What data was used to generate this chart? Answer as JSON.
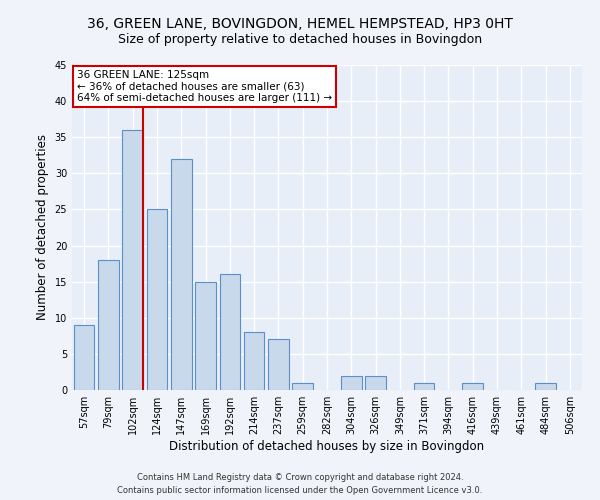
{
  "title": "36, GREEN LANE, BOVINGDON, HEMEL HEMPSTEAD, HP3 0HT",
  "subtitle": "Size of property relative to detached houses in Bovingdon",
  "xlabel": "Distribution of detached houses by size in Bovingdon",
  "ylabel": "Number of detached properties",
  "categories": [
    "57sqm",
    "79sqm",
    "102sqm",
    "124sqm",
    "147sqm",
    "169sqm",
    "192sqm",
    "214sqm",
    "237sqm",
    "259sqm",
    "282sqm",
    "304sqm",
    "326sqm",
    "349sqm",
    "371sqm",
    "394sqm",
    "416sqm",
    "439sqm",
    "461sqm",
    "484sqm",
    "506sqm"
  ],
  "values": [
    9,
    18,
    36,
    25,
    32,
    15,
    16,
    8,
    7,
    1,
    0,
    2,
    2,
    0,
    1,
    0,
    1,
    0,
    0,
    1,
    0
  ],
  "bar_color": "#c9d9ec",
  "bar_edge_color": "#5b8fc9",
  "background_color": "#e8eef8",
  "fig_background_color": "#f0f4fa",
  "grid_color": "#ffffff",
  "ylim": [
    0,
    45
  ],
  "yticks": [
    0,
    5,
    10,
    15,
    20,
    25,
    30,
    35,
    40,
    45
  ],
  "vline_index": 2,
  "vline_color": "#cc0000",
  "annotation_line1": "36 GREEN LANE: 125sqm",
  "annotation_line2": "← 36% of detached houses are smaller (63)",
  "annotation_line3": "64% of semi-detached houses are larger (111) →",
  "footer_line1": "Contains HM Land Registry data © Crown copyright and database right 2024.",
  "footer_line2": "Contains public sector information licensed under the Open Government Licence v3.0.",
  "title_fontsize": 10,
  "subtitle_fontsize": 9,
  "tick_fontsize": 7,
  "ylabel_fontsize": 8.5,
  "xlabel_fontsize": 8.5,
  "annotation_fontsize": 7.5,
  "footer_fontsize": 6
}
